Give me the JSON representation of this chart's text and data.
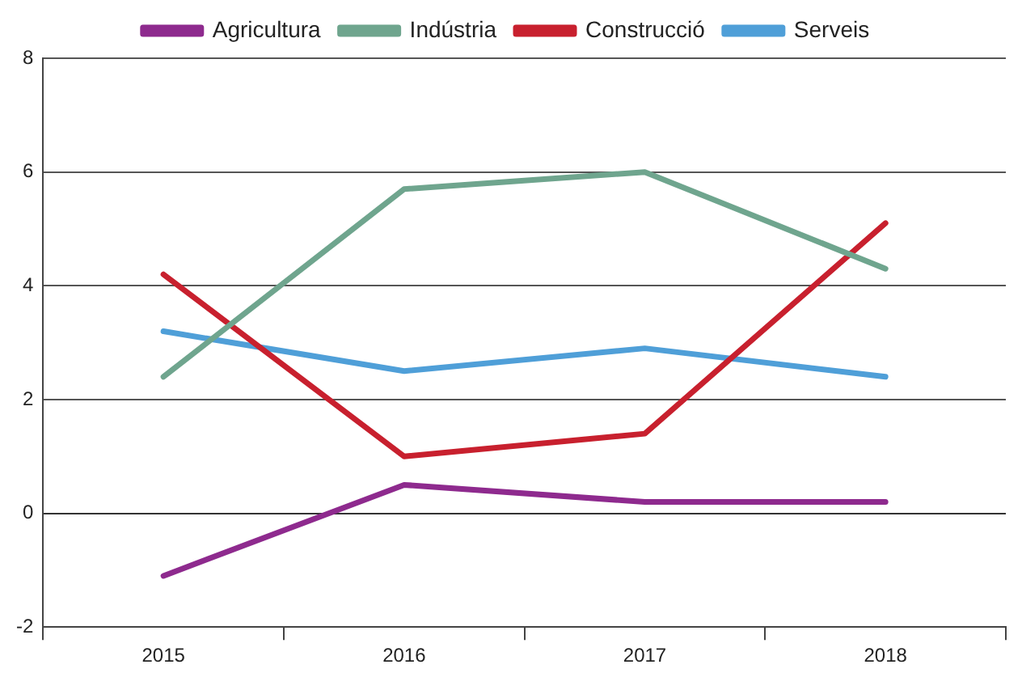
{
  "chart_data": {
    "type": "line",
    "categories": [
      "2015",
      "2016",
      "2017",
      "2018"
    ],
    "series": [
      {
        "name": "Agricultura",
        "color": "#8e2a8e",
        "values": [
          -1.1,
          0.5,
          0.2,
          0.2
        ]
      },
      {
        "name": "Indústria",
        "color": "#6fa58e",
        "values": [
          2.4,
          5.7,
          6.0,
          4.3
        ]
      },
      {
        "name": "Construcció",
        "color": "#c8202e",
        "values": [
          4.2,
          1.0,
          1.4,
          5.1
        ]
      },
      {
        "name": "Serveis",
        "color": "#4f9fd8",
        "values": [
          3.2,
          2.5,
          2.9,
          2.4
        ]
      }
    ],
    "ylim": [
      -2,
      8
    ],
    "yticks": [
      -2,
      0,
      2,
      4,
      6,
      8
    ],
    "grid": "y",
    "legend": "top",
    "marker": "none",
    "line_style": "solid"
  }
}
